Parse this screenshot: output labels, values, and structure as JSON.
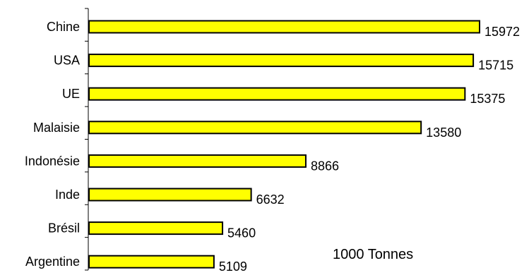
{
  "chart_data": {
    "type": "bar",
    "orientation": "horizontal",
    "categories": [
      "Chine",
      "USA",
      "UE",
      "Malaisie",
      "Indonésie",
      "Inde",
      "Brésil",
      "Argentine"
    ],
    "values": [
      15972,
      15715,
      15375,
      13580,
      8866,
      6632,
      5460,
      5109
    ],
    "title": "",
    "xlabel": "",
    "ylabel": "",
    "annotation": "1000 Tonnes",
    "xlim": [
      0,
      16000
    ],
    "grid": false,
    "legend": "none",
    "data_labels": true,
    "colors": {
      "bar_fill": "#ffff00",
      "bar_stroke": "#000000",
      "axis": "#000000",
      "background": "#ffffff"
    }
  }
}
